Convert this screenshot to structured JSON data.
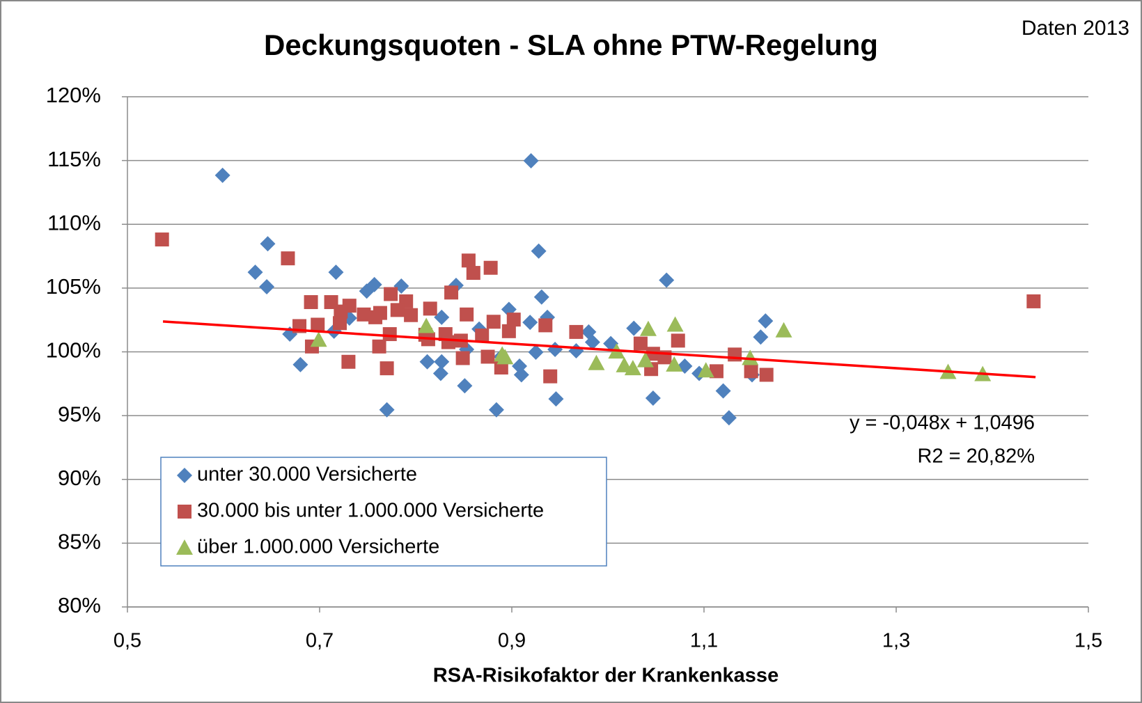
{
  "chart_data": {
    "type": "scatter",
    "title": "Deckungsquoten - SLA ohne PTW-Regelung",
    "subtitle": "Daten 2013",
    "x_label": "RSA-Risikofaktor der Krankenkasse",
    "xlim": [
      0.5,
      1.5
    ],
    "xticks": [
      {
        "value": 0.5,
        "label": "0,5"
      },
      {
        "value": 0.7,
        "label": "0,7"
      },
      {
        "value": 0.9,
        "label": "0,9"
      },
      {
        "value": 1.1,
        "label": "1,1"
      },
      {
        "value": 1.3,
        "label": "1,3"
      },
      {
        "value": 1.5,
        "label": "1,5"
      }
    ],
    "ylim": [
      80,
      120
    ],
    "yticks": [
      {
        "value": 80,
        "label": "80%"
      },
      {
        "value": 85,
        "label": "85%"
      },
      {
        "value": 90,
        "label": "90%"
      },
      {
        "value": 95,
        "label": "95%"
      },
      {
        "value": 100,
        "label": "100%"
      },
      {
        "value": 105,
        "label": "105%"
      },
      {
        "value": 110,
        "label": "110%"
      },
      {
        "value": 115,
        "label": "115%"
      },
      {
        "value": 120,
        "label": "120%"
      }
    ],
    "grid": true,
    "legend": "lower left",
    "series": [
      {
        "name": "unter 30.000 Versicherte",
        "color": "#4f81bd",
        "marker": "diamond",
        "x": [
          0.599,
          0.92,
          0.646,
          0.633,
          0.645,
          0.928,
          1.061,
          0.717,
          0.757,
          0.749,
          0.785,
          0.842,
          0.931,
          0.897,
          0.937,
          0.827,
          0.919,
          0.731,
          0.715,
          0.669,
          0.866,
          0.98,
          1.027,
          1.164,
          1.159,
          1.003,
          0.984,
          0.967,
          0.945,
          0.925,
          0.889,
          0.853,
          0.812,
          0.827,
          0.826,
          0.908,
          0.91,
          0.68,
          0.851,
          0.946,
          1.047,
          1.08,
          1.095,
          1.12,
          1.126,
          1.15,
          0.77,
          0.884
        ],
        "values": [
          113.84,
          114.98,
          108.47,
          106.24,
          105.1,
          107.9,
          105.62,
          106.24,
          105.27,
          104.76,
          105.16,
          105.21,
          104.3,
          103.33,
          102.71,
          102.71,
          102.31,
          102.65,
          101.62,
          101.39,
          101.79,
          101.56,
          101.85,
          102.42,
          101.16,
          100.65,
          100.76,
          100.08,
          100.19,
          99.97,
          99.62,
          100.19,
          99.22,
          99.22,
          98.31,
          98.88,
          98.2,
          99.0,
          97.34,
          96.31,
          96.37,
          98.88,
          98.31,
          96.94,
          94.83,
          98.2,
          95.46,
          95.46
        ]
      },
      {
        "name": "30.000 bis unter 1.000.000 Versicherte",
        "color": "#c0504d",
        "marker": "square",
        "x": [
          0.536,
          0.667,
          0.855,
          0.878,
          0.86,
          0.837,
          0.774,
          0.79,
          0.691,
          0.712,
          0.731,
          0.815,
          0.722,
          0.781,
          0.795,
          0.746,
          0.763,
          0.758,
          0.853,
          0.902,
          0.881,
          0.721,
          0.698,
          0.679,
          0.935,
          0.897,
          0.967,
          0.773,
          0.81,
          0.831,
          0.869,
          0.813,
          0.834,
          0.847,
          1.034,
          1.073,
          0.692,
          0.762,
          0.849,
          0.875,
          1.047,
          1.059,
          1.132,
          0.73,
          0.77,
          0.889,
          1.045,
          0.94,
          1.113,
          1.149,
          1.165,
          1.443
        ],
        "values": [
          108.81,
          107.33,
          107.16,
          106.59,
          106.19,
          104.65,
          104.53,
          103.96,
          103.9,
          103.9,
          103.62,
          103.39,
          103.16,
          103.28,
          102.88,
          102.93,
          103.05,
          102.71,
          102.93,
          102.53,
          102.36,
          102.25,
          102.13,
          102.02,
          102.08,
          101.62,
          101.56,
          101.39,
          101.34,
          101.39,
          101.28,
          100.99,
          100.76,
          100.88,
          100.65,
          100.88,
          100.42,
          100.42,
          99.51,
          99.62,
          99.85,
          99.57,
          99.79,
          99.22,
          98.71,
          98.77,
          98.65,
          98.08,
          98.48,
          98.48,
          98.2,
          103.96
        ]
      },
      {
        "name": "über 1.000.000 Versicherte",
        "color": "#9bbb59",
        "marker": "triangle",
        "x": [
          0.811,
          1.07,
          1.042,
          1.183,
          0.699,
          1.009,
          0.89,
          1.148,
          0.893,
          1.039,
          0.988,
          1.017,
          1.026,
          1.069,
          1.102,
          1.354,
          1.39
        ],
        "values": [
          102.02,
          102.13,
          101.79,
          101.68,
          100.94,
          100.02,
          99.79,
          99.51,
          99.57,
          99.34,
          99.11,
          98.94,
          98.71,
          99.0,
          98.54,
          98.42,
          98.25
        ]
      }
    ],
    "trendline": {
      "color": "#ff0000",
      "x": [
        0.537,
        1.445
      ],
      "values": [
        102.38,
        98.02
      ]
    },
    "annotations": [
      "y = -0,048x + 1,0496",
      "R2 = 20,82%"
    ]
  }
}
